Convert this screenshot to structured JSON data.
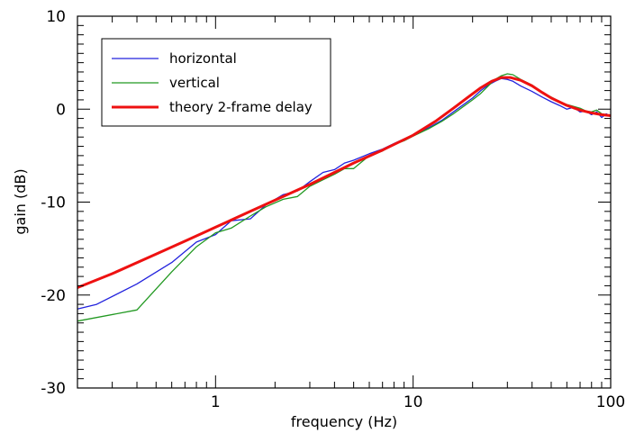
{
  "chart_data": {
    "type": "line",
    "title": "",
    "xlabel": "frequency (Hz)",
    "ylabel": "gain (dB)",
    "xscale": "log",
    "xlim": [
      0.2,
      100
    ],
    "ylim": [
      -30,
      10
    ],
    "x_ticks": [
      1,
      10,
      100
    ],
    "x_tick_labels": [
      "1",
      "10",
      "100"
    ],
    "y_ticks": [
      -30,
      -20,
      -10,
      0,
      10
    ],
    "y_tick_labels": [
      "-30",
      "-20",
      "-10",
      "0",
      "10"
    ],
    "grid": false,
    "legend": {
      "position": "top-left"
    },
    "series": [
      {
        "name": "horizontal",
        "color": "#2222dd",
        "x": [
          0.2,
          0.25,
          0.4,
          0.6,
          0.8,
          1.0,
          1.2,
          1.5,
          1.8,
          2.2,
          2.6,
          3.0,
          3.5,
          4.0,
          4.5,
          5.0,
          6.0,
          7.0,
          8.0,
          9.0,
          10,
          12,
          14,
          16,
          18,
          20,
          22,
          24,
          26,
          28,
          30,
          32,
          35,
          40,
          45,
          50,
          55,
          60,
          65,
          70,
          75,
          80,
          85,
          90,
          95,
          100
        ],
        "y": [
          -21.5,
          -21.0,
          -18.8,
          -16.5,
          -14.3,
          -13.5,
          -12.0,
          -11.8,
          -10.3,
          -9.2,
          -8.8,
          -7.8,
          -6.8,
          -6.5,
          -5.8,
          -5.5,
          -4.8,
          -4.3,
          -3.7,
          -3.2,
          -2.8,
          -2.0,
          -1.2,
          -0.3,
          0.5,
          1.2,
          2.0,
          2.6,
          3.0,
          3.3,
          3.2,
          3.0,
          2.5,
          1.9,
          1.3,
          0.8,
          0.4,
          0.0,
          0.2,
          -0.3,
          -0.2,
          -0.6,
          -0.3,
          -0.9,
          -0.5,
          -0.8
        ]
      },
      {
        "name": "vertical",
        "color": "#229922",
        "x": [
          0.2,
          0.4,
          0.6,
          0.8,
          1.0,
          1.2,
          1.5,
          1.8,
          2.2,
          2.6,
          3.0,
          3.5,
          4.0,
          4.5,
          5.0,
          6.0,
          7.0,
          8.0,
          9.0,
          10,
          12,
          14,
          16,
          18,
          20,
          22,
          24,
          26,
          28,
          30,
          32,
          35,
          40,
          45,
          50,
          55,
          60,
          65,
          70,
          75,
          80,
          85,
          90,
          95,
          100
        ],
        "y": [
          -22.8,
          -21.6,
          -17.5,
          -14.8,
          -13.3,
          -12.8,
          -11.5,
          -10.5,
          -9.7,
          -9.4,
          -8.3,
          -7.6,
          -7.0,
          -6.4,
          -6.4,
          -5.0,
          -4.5,
          -3.8,
          -3.4,
          -2.9,
          -2.1,
          -1.3,
          -0.5,
          0.3,
          1.0,
          1.7,
          2.5,
          3.2,
          3.6,
          3.8,
          3.7,
          3.2,
          2.6,
          1.8,
          1.3,
          0.8,
          0.5,
          0.3,
          0.1,
          -0.2,
          -0.3,
          -0.1,
          -0.5,
          -0.6,
          -0.7
        ]
      },
      {
        "name": "theory 2-frame delay",
        "color": "#ee1111",
        "x": [
          0.2,
          0.3,
          0.5,
          0.7,
          1.0,
          1.5,
          2.0,
          3.0,
          4.0,
          5.0,
          7.0,
          10,
          13,
          16,
          19,
          22,
          25,
          28,
          31,
          35,
          40,
          45,
          50,
          60,
          70,
          80,
          90,
          100
        ],
        "y": [
          -19.2,
          -17.7,
          -15.6,
          -14.2,
          -12.7,
          -11.0,
          -9.8,
          -8.1,
          -6.8,
          -5.8,
          -4.4,
          -2.8,
          -1.3,
          0.1,
          1.3,
          2.3,
          3.0,
          3.4,
          3.4,
          3.1,
          2.5,
          1.8,
          1.2,
          0.4,
          -0.1,
          -0.4,
          -0.6,
          -0.7
        ]
      }
    ]
  }
}
